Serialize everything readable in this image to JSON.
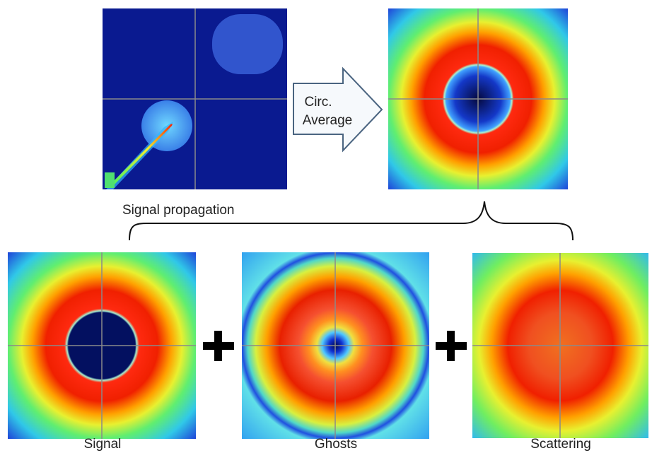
{
  "arrow": {
    "lines": [
      "Circ.",
      "Average"
    ]
  },
  "panels": [
    {
      "label": "Signal propagation"
    },
    {
      "label": "Signal"
    },
    {
      "label": "Ghosts"
    },
    {
      "label": "Scattering"
    }
  ]
}
